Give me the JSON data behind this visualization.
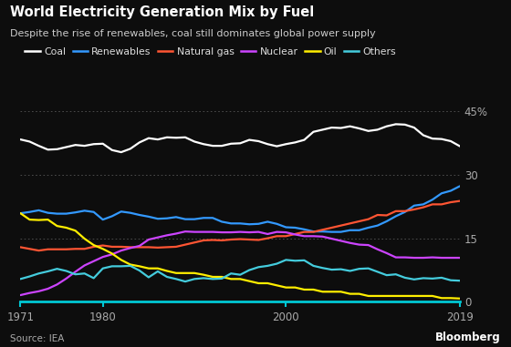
{
  "title": "World Electricity Generation Mix by Fuel",
  "subtitle": "Despite the rise of renewables, coal still dominates global power supply",
  "source": "Source: IEA",
  "branding": "Bloomberg",
  "background_color": "#1a1a2e",
  "plot_bg_color": "#1a1a2e",
  "text_color": "#e8e8e8",
  "grid_color": "#3a3a4a",
  "axis_color": "#00c8d4",
  "ylim": [
    0,
    45
  ],
  "yticks": [
    0,
    15,
    30,
    45
  ],
  "ytick_labels": [
    "0",
    "15",
    "30",
    "45%"
  ],
  "xticks": [
    1971,
    1980,
    2000,
    2019
  ],
  "years": [
    1971,
    1972,
    1973,
    1974,
    1975,
    1976,
    1977,
    1978,
    1979,
    1980,
    1981,
    1982,
    1983,
    1984,
    1985,
    1986,
    1987,
    1988,
    1989,
    1990,
    1991,
    1992,
    1993,
    1994,
    1995,
    1996,
    1997,
    1998,
    1999,
    2000,
    2001,
    2002,
    2003,
    2004,
    2005,
    2006,
    2007,
    2008,
    2009,
    2010,
    2011,
    2012,
    2013,
    2014,
    2015,
    2016,
    2017,
    2018,
    2019
  ],
  "coal": [
    38.3,
    37.8,
    36.8,
    35.9,
    36.0,
    36.5,
    37.0,
    36.8,
    37.2,
    37.3,
    35.8,
    35.3,
    36.1,
    37.6,
    38.6,
    38.3,
    38.8,
    38.7,
    38.8,
    37.8,
    37.2,
    36.8,
    36.8,
    37.3,
    37.4,
    38.2,
    37.9,
    37.2,
    36.7,
    37.2,
    37.6,
    38.2,
    40.1,
    40.6,
    41.1,
    41.0,
    41.4,
    40.9,
    40.3,
    40.6,
    41.4,
    41.9,
    41.8,
    41.1,
    39.3,
    38.5,
    38.4,
    37.9,
    36.7
  ],
  "renewables": [
    20.9,
    21.2,
    21.6,
    21.0,
    20.8,
    20.8,
    21.1,
    21.5,
    21.2,
    19.4,
    20.2,
    21.3,
    21.0,
    20.5,
    20.1,
    19.6,
    19.7,
    20.0,
    19.5,
    19.5,
    19.8,
    19.8,
    18.9,
    18.5,
    18.5,
    18.3,
    18.4,
    18.9,
    18.4,
    17.6,
    17.5,
    17.1,
    16.6,
    16.6,
    16.5,
    16.5,
    16.9,
    16.9,
    17.5,
    18.0,
    19.0,
    20.2,
    21.2,
    22.7,
    23.0,
    24.1,
    25.6,
    26.2,
    27.3
  ],
  "natural_gas": [
    12.9,
    12.5,
    12.1,
    12.4,
    12.4,
    12.4,
    12.5,
    12.5,
    13.0,
    13.3,
    13.0,
    13.0,
    12.9,
    12.9,
    12.9,
    12.8,
    12.9,
    13.0,
    13.5,
    14.0,
    14.5,
    14.6,
    14.5,
    14.7,
    14.8,
    14.7,
    14.6,
    15.0,
    15.5,
    15.5,
    16.0,
    16.5,
    16.5,
    17.0,
    17.5,
    18.0,
    18.5,
    19.0,
    19.5,
    20.5,
    20.4,
    21.4,
    21.4,
    21.8,
    22.3,
    23.0,
    23.0,
    23.5,
    23.8
  ],
  "nuclear": [
    1.6,
    2.1,
    2.5,
    3.1,
    4.1,
    5.5,
    7.1,
    8.6,
    9.6,
    10.6,
    11.2,
    12.1,
    12.7,
    13.2,
    14.7,
    15.2,
    15.7,
    16.1,
    16.6,
    16.5,
    16.5,
    16.5,
    16.4,
    16.4,
    16.5,
    16.4,
    16.5,
    16.0,
    16.5,
    16.4,
    15.9,
    15.5,
    15.5,
    15.4,
    14.9,
    14.4,
    13.9,
    13.5,
    13.4,
    12.4,
    11.5,
    10.5,
    10.5,
    10.4,
    10.4,
    10.5,
    10.4,
    10.4,
    10.4
  ],
  "oil": [
    20.9,
    19.4,
    19.3,
    19.4,
    17.9,
    17.5,
    16.8,
    14.9,
    13.4,
    12.5,
    11.4,
    9.9,
    8.8,
    8.4,
    7.9,
    7.9,
    7.3,
    6.8,
    6.8,
    6.8,
    6.4,
    5.9,
    5.9,
    5.4,
    5.4,
    4.9,
    4.4,
    4.4,
    3.9,
    3.4,
    3.4,
    2.9,
    2.9,
    2.4,
    2.4,
    2.4,
    1.9,
    1.9,
    1.4,
    1.4,
    1.4,
    1.4,
    1.4,
    1.4,
    1.4,
    1.4,
    0.9,
    0.9,
    0.8
  ],
  "others": [
    5.4,
    6.0,
    6.7,
    7.2,
    7.8,
    7.3,
    6.5,
    6.7,
    5.6,
    7.9,
    8.4,
    8.4,
    8.5,
    7.4,
    5.8,
    7.2,
    5.9,
    5.4,
    4.8,
    5.4,
    5.6,
    5.4,
    5.5,
    6.7,
    6.4,
    7.5,
    8.2,
    8.5,
    9.0,
    9.9,
    9.7,
    9.8,
    8.5,
    8.0,
    7.6,
    7.7,
    7.3,
    7.8,
    7.9,
    7.1,
    6.3,
    6.5,
    5.7,
    5.3,
    5.6,
    5.5,
    5.7,
    5.1,
    5.0
  ],
  "line_colors": {
    "coal": "#ffffff",
    "renewables": "#3399ff",
    "natural_gas": "#ff5533",
    "nuclear": "#cc44ff",
    "oil": "#ffee00",
    "others": "#44ccdd"
  },
  "legend_labels": [
    "Coal",
    "Renewables",
    "Natural gas",
    "Nuclear",
    "Oil",
    "Others"
  ]
}
